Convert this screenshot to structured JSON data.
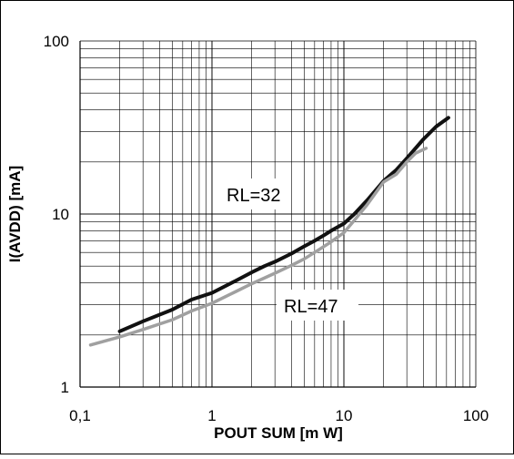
{
  "chart_data": {
    "type": "line",
    "x_scale": "log",
    "y_scale": "log",
    "xlim": [
      0.1,
      100
    ],
    "ylim": [
      1,
      100
    ],
    "xlabel": "POUT SUM [m W]",
    "ylabel": "I(AVDD) [mA]",
    "x_ticks": [
      "0,1",
      "1",
      "10",
      "100"
    ],
    "y_ticks": [
      "1",
      "10",
      "100"
    ],
    "grid": true,
    "series": [
      {
        "name": "RL=32",
        "color": "#111111",
        "x": [
          0.2,
          0.3,
          0.5,
          0.7,
          1.0,
          1.5,
          2.0,
          2.5,
          3.0,
          4.0,
          5.0,
          6.0,
          7.0,
          8.0,
          10.0,
          12.0,
          15.0,
          20.0,
          25.0,
          30.0,
          40.0,
          50.0,
          62.0
        ],
        "y": [
          2.1,
          2.4,
          2.8,
          3.2,
          3.5,
          4.1,
          4.6,
          5.0,
          5.3,
          5.9,
          6.5,
          7.0,
          7.5,
          8.0,
          8.8,
          10.0,
          12.0,
          15.5,
          18.0,
          21.0,
          27.0,
          32.0,
          36.0
        ]
      },
      {
        "name": "RL=47",
        "color": "#a0a0a0",
        "x": [
          0.12,
          0.2,
          0.3,
          0.5,
          0.7,
          1.0,
          1.5,
          2.0,
          3.0,
          4.0,
          5.0,
          6.0,
          8.0,
          10.0,
          12.0,
          15.0,
          20.0,
          25.0,
          30.0,
          35.0,
          42.0
        ],
        "y": [
          1.75,
          1.95,
          2.15,
          2.45,
          2.75,
          3.05,
          3.55,
          3.95,
          4.55,
          5.05,
          5.5,
          6.0,
          6.9,
          7.8,
          9.2,
          11.3,
          15.3,
          17.0,
          20.0,
          22.5,
          24.0
        ]
      }
    ],
    "annotations": [
      "RL=32",
      "RL=47"
    ]
  }
}
